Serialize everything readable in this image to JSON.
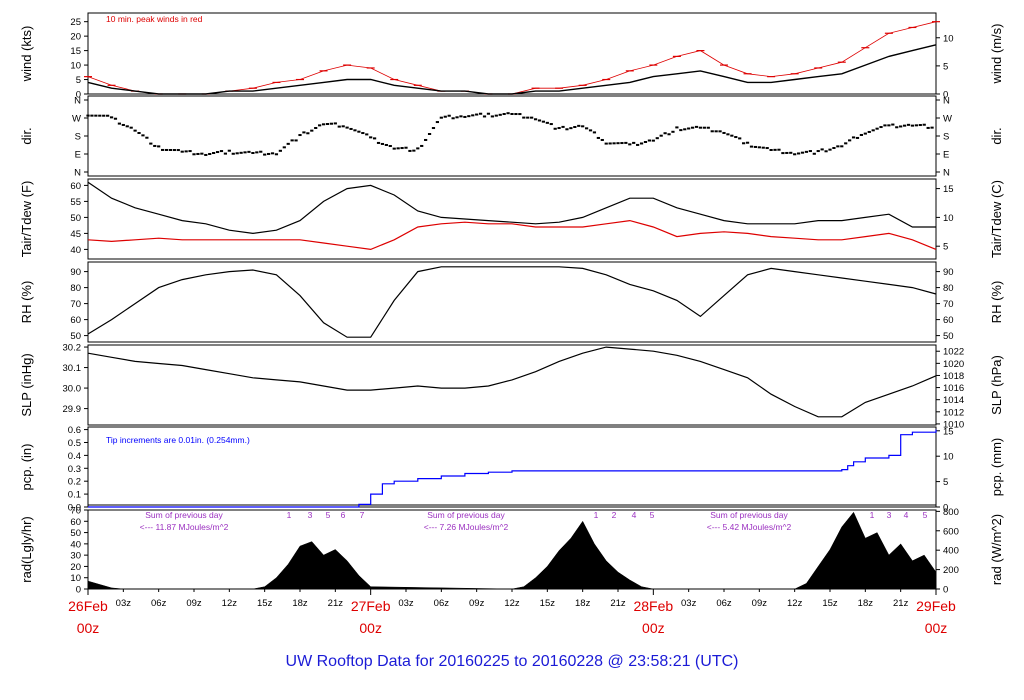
{
  "title": "UW Rooftop Data for 20160225  to  20160228 @ 23:58:21  (UTC)",
  "colors": {
    "primary": "#000000",
    "peak": "#dd0000",
    "day": "#dd0000",
    "title": "#1b1bd6",
    "precip": "#0000ff",
    "rad": "#9b30c0"
  },
  "x_axis": {
    "hour_ticks": [
      "03z",
      "06z",
      "09z",
      "12z",
      "15z",
      "18z",
      "21z",
      "03z",
      "06z",
      "09z",
      "12z",
      "15z",
      "18z",
      "21z",
      "03z",
      "06z",
      "09z",
      "12z",
      "15z",
      "18z",
      "21z"
    ],
    "day_labels": [
      {
        "date": "26Feb",
        "time": "00z"
      },
      {
        "date": "27Feb",
        "time": "00z"
      },
      {
        "date": "28Feb",
        "time": "00z"
      },
      {
        "date": "29Feb",
        "time": "00z"
      }
    ]
  },
  "panels": [
    {
      "id": "wind",
      "left_label": "wind (kts)",
      "right_label": "wind (m/s)",
      "left_ticks": [
        "0",
        "5",
        "10",
        "15",
        "20",
        "25"
      ],
      "right_ticks": [
        "0",
        "5",
        "10"
      ],
      "annotation": "10 min. peak winds in red"
    },
    {
      "id": "dir",
      "left_label": "dir.",
      "right_label": "dir.",
      "left_ticks": [
        "N",
        "E",
        "S",
        "W",
        "N"
      ],
      "right_ticks": [
        "N",
        "E",
        "S",
        "W",
        "N"
      ]
    },
    {
      "id": "temp",
      "left_label": "Tair/Tdew (F)",
      "right_label": "Tair/Tdew (C)",
      "left_ticks": [
        "40",
        "45",
        "50",
        "55",
        "60"
      ],
      "right_ticks": [
        "5",
        "10",
        "15"
      ]
    },
    {
      "id": "rh",
      "left_label": "RH (%)",
      "right_label": "RH (%)",
      "left_ticks": [
        "50",
        "60",
        "70",
        "80",
        "90"
      ],
      "right_ticks": [
        "50",
        "60",
        "70",
        "80",
        "90"
      ]
    },
    {
      "id": "slp",
      "left_label": "SLP (inHg)",
      "right_label": "SLP (hPa)",
      "left_ticks": [
        "29.9",
        "30.0",
        "30.1",
        "30.2"
      ],
      "right_ticks": [
        "1010",
        "1012",
        "1014",
        "1016",
        "1018",
        "1020",
        "1022"
      ]
    },
    {
      "id": "pcp",
      "left_label": "pcp. (in)",
      "right_label": "pcp. (mm)",
      "left_ticks": [
        "0.0",
        "0.1",
        "0.2",
        "0.3",
        "0.4",
        "0.5",
        "0.6"
      ],
      "right_ticks": [
        "0",
        "5",
        "10",
        "15"
      ],
      "annotation": "Tip increments are 0.01in. (0.254mm.)"
    },
    {
      "id": "rad",
      "left_label": "rad(Lgly/hr)",
      "right_label": "rad (W/m^2)",
      "left_ticks": [
        "0",
        "10",
        "20",
        "30",
        "40",
        "50",
        "60",
        "70"
      ],
      "right_ticks": [
        "0",
        "200",
        "400",
        "600",
        "800"
      ],
      "sums": [
        {
          "line1": "Sum of previous day",
          "line2": "<--- 11.87 MJoules/m^2"
        },
        {
          "line1": "Sum of previous day",
          "line2": "<--- 7.26 MJoules/m^2"
        },
        {
          "line1": "Sum of previous day",
          "line2": "<--- 5.42 MJoules/m^2"
        }
      ],
      "hour_marks": [
        "1",
        "3",
        "5",
        "6",
        "7",
        "1",
        "2",
        "4",
        "5",
        "1",
        "3",
        "4",
        "5"
      ]
    }
  ],
  "chart_data": {
    "type": "line",
    "title": "UW Rooftop Data for 20160225  to  20160228 @ 23:58:21  (UTC)",
    "x_unit": "hours since 2016-02-26 00z",
    "xlim": [
      0,
      72
    ],
    "series": [
      {
        "name": "wind (kts)",
        "x": [
          0,
          2,
          4,
          6,
          8,
          10,
          12,
          14,
          16,
          18,
          20,
          22,
          24,
          26,
          28,
          30,
          32,
          34,
          36,
          38,
          40,
          42,
          44,
          46,
          48,
          50,
          52,
          54,
          56,
          58,
          60,
          62,
          64,
          66,
          68,
          70,
          72
        ],
        "values": [
          4,
          2,
          1,
          0,
          0,
          0,
          1,
          1,
          2,
          3,
          4,
          5,
          5,
          3,
          2,
          1,
          1,
          0,
          0,
          1,
          1,
          2,
          3,
          4,
          6,
          7,
          8,
          6,
          4,
          4,
          5,
          6,
          7,
          10,
          13,
          15,
          17
        ],
        "ylim": [
          0,
          28
        ]
      },
      {
        "name": "10 min. peak winds in red",
        "x": [
          0,
          2,
          4,
          6,
          8,
          10,
          12,
          14,
          16,
          18,
          20,
          22,
          24,
          26,
          28,
          30,
          32,
          34,
          36,
          38,
          40,
          42,
          44,
          46,
          48,
          50,
          52,
          54,
          56,
          58,
          60,
          62,
          64,
          66,
          68,
          70,
          72
        ],
        "values": [
          6,
          3,
          1,
          0,
          0,
          0,
          1,
          2,
          4,
          5,
          8,
          10,
          9,
          5,
          3,
          1,
          1,
          0,
          0,
          2,
          2,
          3,
          5,
          8,
          10,
          13,
          15,
          10,
          7,
          6,
          7,
          9,
          11,
          16,
          21,
          23,
          25
        ],
        "ylim": [
          0,
          28
        ]
      },
      {
        "name": "dir.",
        "x": [
          0,
          2,
          4,
          6,
          8,
          10,
          12,
          14,
          16,
          18,
          20,
          22,
          24,
          26,
          28,
          30,
          32,
          34,
          36,
          38,
          40,
          42,
          44,
          46,
          48,
          50,
          52,
          54,
          56,
          58,
          60,
          62,
          64,
          66,
          68,
          70,
          72
        ],
        "values": [
          290,
          270,
          210,
          120,
          100,
          90,
          100,
          95,
          95,
          180,
          240,
          230,
          170,
          120,
          110,
          270,
          280,
          285,
          290,
          270,
          215,
          230,
          150,
          135,
          160,
          215,
          220,
          200,
          140,
          110,
          95,
          100,
          130,
          200,
          230,
          235,
          225
        ],
        "ylim": [
          0,
          360
        ]
      },
      {
        "name": "Tair (F)",
        "x": [
          0,
          2,
          4,
          6,
          8,
          10,
          12,
          14,
          16,
          18,
          20,
          22,
          24,
          26,
          28,
          30,
          32,
          34,
          36,
          38,
          40,
          42,
          44,
          46,
          48,
          50,
          52,
          54,
          56,
          58,
          60,
          62,
          64,
          66,
          68,
          70,
          72
        ],
        "values": [
          61,
          56,
          53,
          51,
          49,
          48,
          46,
          45,
          46,
          49,
          55,
          59,
          60,
          57,
          52,
          50,
          49.5,
          49,
          48.5,
          48,
          48.5,
          50,
          53,
          56,
          56,
          53,
          51,
          49,
          48,
          48,
          48,
          49,
          49,
          50,
          51,
          47,
          47
        ],
        "ylim": [
          37,
          62
        ]
      },
      {
        "name": "Tdew (F)",
        "x": [
          0,
          2,
          4,
          6,
          8,
          10,
          12,
          14,
          16,
          18,
          20,
          22,
          24,
          26,
          28,
          30,
          32,
          34,
          36,
          38,
          40,
          42,
          44,
          46,
          48,
          50,
          52,
          54,
          56,
          58,
          60,
          62,
          64,
          66,
          68,
          70,
          72
        ],
        "values": [
          43,
          42.5,
          43,
          43.5,
          43,
          43,
          43,
          43,
          43,
          43,
          42,
          41,
          40,
          43,
          47,
          48,
          48.5,
          48,
          48,
          47,
          47,
          47,
          48,
          49,
          47,
          44,
          45,
          45.5,
          45,
          44,
          43.5,
          43,
          43,
          44,
          45,
          43,
          40
        ],
        "ylim": [
          37,
          62
        ]
      },
      {
        "name": "RH (%)",
        "x": [
          0,
          2,
          4,
          6,
          8,
          10,
          12,
          14,
          16,
          18,
          20,
          22,
          24,
          26,
          28,
          30,
          32,
          34,
          36,
          38,
          40,
          42,
          44,
          46,
          48,
          50,
          52,
          54,
          56,
          58,
          60,
          62,
          64,
          66,
          68,
          70,
          72
        ],
        "values": [
          51,
          60,
          70,
          80,
          85,
          88,
          90,
          91,
          88,
          75,
          58,
          49,
          49,
          72,
          90,
          93,
          93,
          93,
          93,
          93,
          93,
          92,
          88,
          82,
          78,
          72,
          62,
          75,
          88,
          92,
          90,
          88,
          86,
          84,
          82,
          80,
          76
        ],
        "ylim": [
          46,
          96
        ]
      },
      {
        "name": "SLP (inHg)",
        "x": [
          0,
          2,
          4,
          6,
          8,
          10,
          12,
          14,
          16,
          18,
          20,
          22,
          24,
          26,
          28,
          30,
          32,
          34,
          36,
          38,
          40,
          42,
          44,
          46,
          48,
          50,
          52,
          54,
          56,
          58,
          60,
          62,
          64,
          66,
          68,
          70,
          72
        ],
        "values": [
          30.17,
          30.15,
          30.13,
          30.12,
          30.11,
          30.09,
          30.07,
          30.05,
          30.04,
          30.03,
          30.01,
          29.99,
          29.99,
          30.0,
          30.01,
          30.0,
          30.0,
          30.01,
          30.04,
          30.08,
          30.13,
          30.17,
          30.2,
          30.19,
          30.18,
          30.16,
          30.13,
          30.09,
          30.05,
          29.97,
          29.91,
          29.86,
          29.86,
          29.93,
          29.97,
          30.01,
          30.06
        ],
        "ylim": [
          29.82,
          30.21
        ]
      },
      {
        "name": "pcp. (in)",
        "x": [
          0,
          22,
          23,
          24,
          25,
          26,
          28,
          30,
          32,
          34,
          36,
          38,
          40,
          42,
          44,
          46,
          48,
          50,
          52,
          54,
          56,
          60,
          62,
          64,
          64.5,
          65,
          66,
          68,
          68.5,
          69,
          70,
          72
        ],
        "values": [
          0,
          0,
          0.02,
          0.1,
          0.18,
          0.2,
          0.22,
          0.24,
          0.26,
          0.27,
          0.28,
          0.28,
          0.28,
          0.28,
          0.28,
          0.28,
          0.28,
          0.28,
          0.28,
          0.28,
          0.28,
          0.28,
          0.28,
          0.29,
          0.32,
          0.35,
          0.38,
          0.4,
          0.4,
          0.56,
          0.58,
          0.6
        ],
        "ylim": [
          0,
          0.62
        ]
      },
      {
        "name": "rad(Lgly/hr)",
        "x": [
          0,
          1,
          2,
          3,
          14,
          15,
          16,
          17,
          18,
          19,
          20,
          21,
          22,
          23,
          24,
          36,
          37,
          38,
          39,
          40,
          41,
          42,
          43,
          44,
          45,
          46,
          47,
          48,
          60,
          61,
          62,
          63,
          64,
          65,
          66,
          67,
          68,
          69,
          70,
          71,
          72
        ],
        "values": [
          7,
          4,
          1,
          0,
          0,
          2,
          10,
          22,
          38,
          42,
          30,
          35,
          25,
          12,
          2,
          0,
          2,
          10,
          20,
          34,
          45,
          60,
          40,
          25,
          15,
          8,
          2,
          0,
          0,
          5,
          20,
          35,
          55,
          68,
          45,
          50,
          30,
          40,
          25,
          30,
          15
        ],
        "ylim": [
          0,
          70
        ]
      }
    ]
  }
}
